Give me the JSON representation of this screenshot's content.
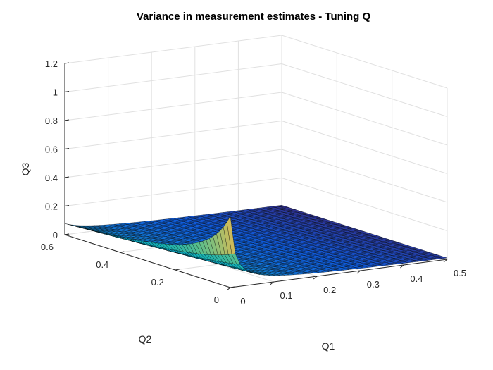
{
  "chart_data": {
    "type": "surface",
    "title": "Variance in measurement estimates - Tuning Q",
    "xlabel": "Q1",
    "ylabel": "Q2",
    "zlabel": "Q3",
    "xlim": [
      0,
      0.5
    ],
    "ylim": [
      0,
      0.6
    ],
    "zlim": [
      0,
      1.2
    ],
    "xticks": [
      "0",
      "0.1",
      "0.2",
      "0.3",
      "0.4",
      "0.5"
    ],
    "yticks": [
      "0",
      "0.2",
      "0.4",
      "0.6"
    ],
    "zticks": [
      "0",
      "0.2",
      "0.4",
      "0.6",
      "0.8",
      "1",
      "1.2"
    ],
    "colormap": "parula",
    "edge_color": "#000000",
    "grid": true,
    "surface_samples": {
      "q1": [
        0,
        0.05,
        0.1,
        0.2,
        0.3,
        0.4,
        0.5
      ],
      "q2_at_0": [
        0.5,
        0.1,
        0.05,
        0.025,
        0.017,
        0.013,
        0.01
      ],
      "peak": {
        "q1": 0,
        "q2": 0,
        "q3": 0.5
      },
      "corner_values": {
        "q1_0_q2_0.5": 0.1,
        "q1_0.5_q2_0": 0.01,
        "q1_0.5_q2_0.6": 0.009
      }
    }
  }
}
